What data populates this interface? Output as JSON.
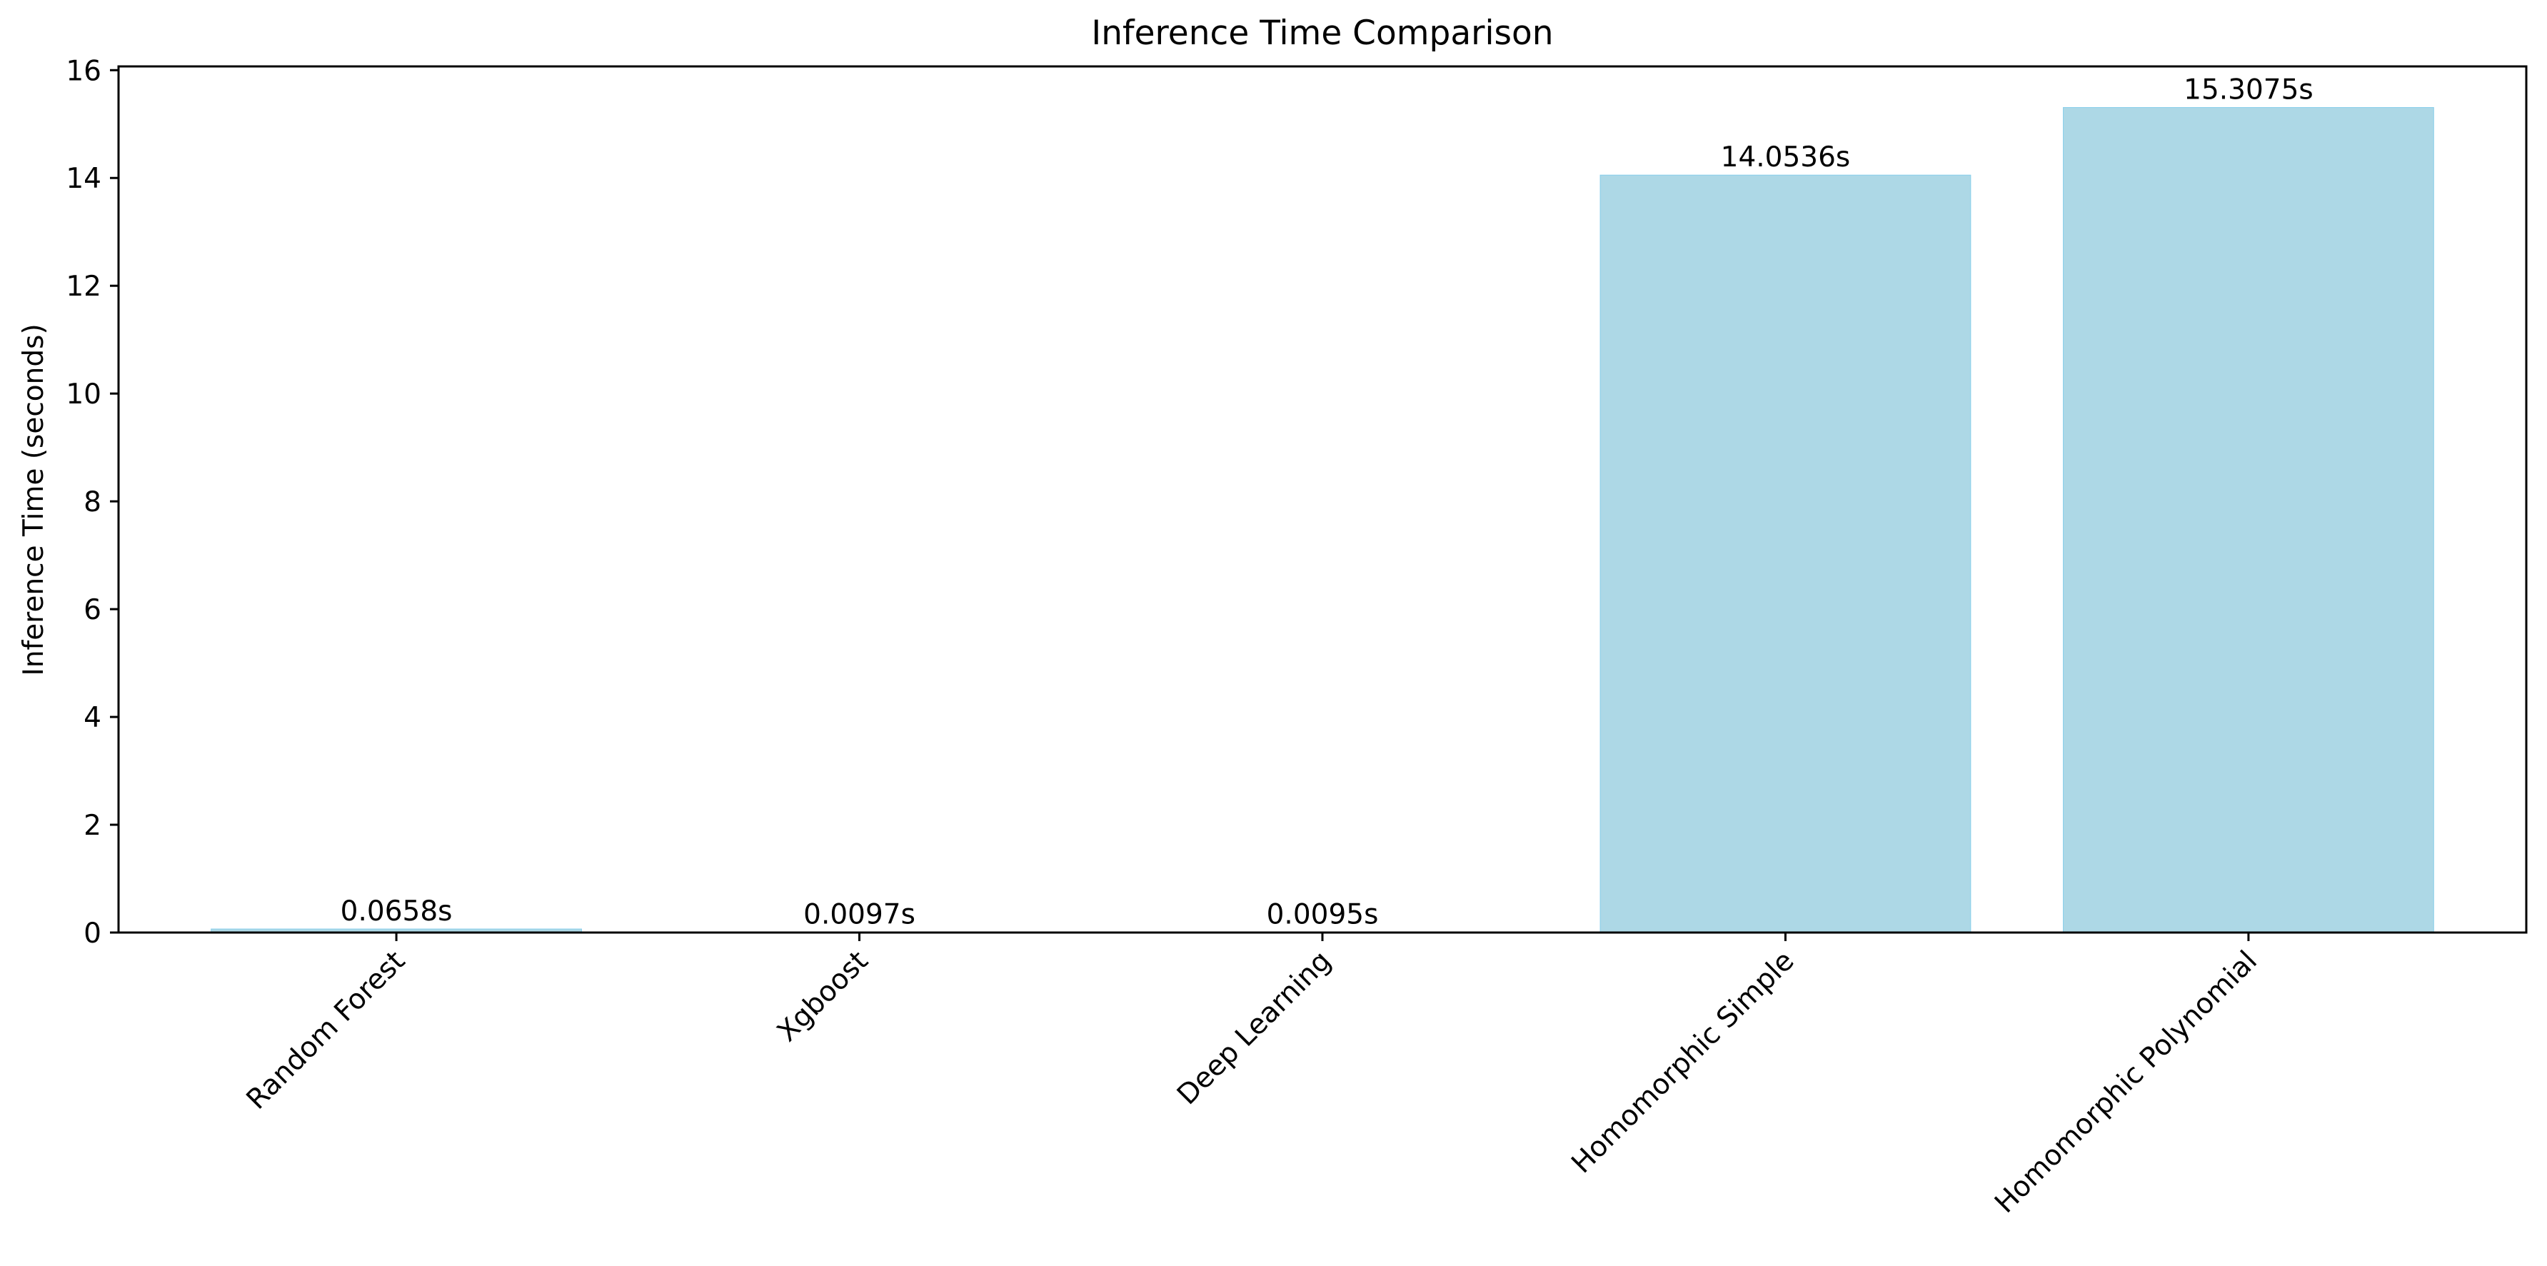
{
  "chart_data": {
    "type": "bar",
    "title": "Inference Time Comparison",
    "xlabel": "",
    "ylabel": "Inference Time (seconds)",
    "categories": [
      "Random Forest",
      "Xgboost",
      "Deep Learning",
      "Homomorphic Simple",
      "Homomorphic Polynomial"
    ],
    "values": [
      0.0658,
      0.0097,
      0.0095,
      14.0536,
      15.3075
    ],
    "data_labels": [
      "0.0658s",
      "0.0097s",
      "0.0095s",
      "14.0536s",
      "15.3075s"
    ],
    "ylim": [
      0,
      16.07
    ],
    "yticks": [
      0,
      2,
      4,
      6,
      8,
      10,
      12,
      14,
      16
    ],
    "xtick_rotation": 45,
    "grid": false,
    "colors": {
      "bar": "#add8e6",
      "bar_edge": "#87ceeb",
      "axis": "#000000",
      "text": "#000000"
    }
  }
}
